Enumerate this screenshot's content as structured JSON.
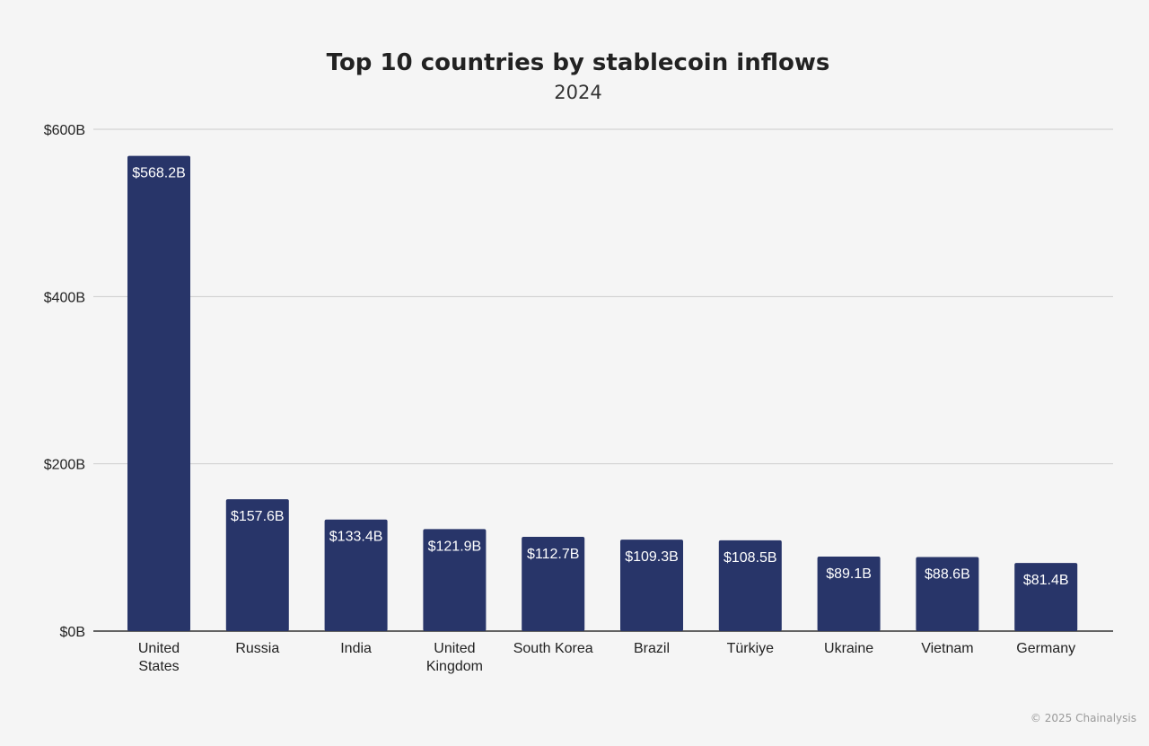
{
  "chart_data": {
    "type": "bar",
    "title": "Top 10 countries by stablecoin inflows",
    "subtitle": "2024",
    "xlabel": "",
    "ylabel": "",
    "categories": [
      [
        "United",
        "States"
      ],
      [
        "Russia"
      ],
      [
        "India"
      ],
      [
        "United",
        "Kingdom"
      ],
      [
        "South Korea"
      ],
      [
        "Brazil"
      ],
      [
        "Türkiye"
      ],
      [
        "Ukraine"
      ],
      [
        "Vietnam"
      ],
      [
        "Germany"
      ]
    ],
    "values": [
      568.2,
      157.6,
      133.4,
      121.9,
      112.7,
      109.3,
      108.5,
      89.1,
      88.6,
      81.4
    ],
    "data_labels": [
      "$568.2B",
      "$157.6B",
      "$133.4B",
      "$121.9B",
      "$112.7B",
      "$109.3B",
      "$108.5B",
      "$89.1B",
      "$88.6B",
      "$81.4B"
    ],
    "ylim": [
      0,
      600
    ],
    "yticks": [
      0,
      200,
      400,
      600
    ],
    "ytick_labels": [
      "$0B",
      "$200B",
      "$400B",
      "$600B"
    ],
    "grid": true,
    "legend": "none",
    "bar_color": "#283569"
  },
  "footer": {
    "copyright": "© 2025 Chainalysis"
  }
}
